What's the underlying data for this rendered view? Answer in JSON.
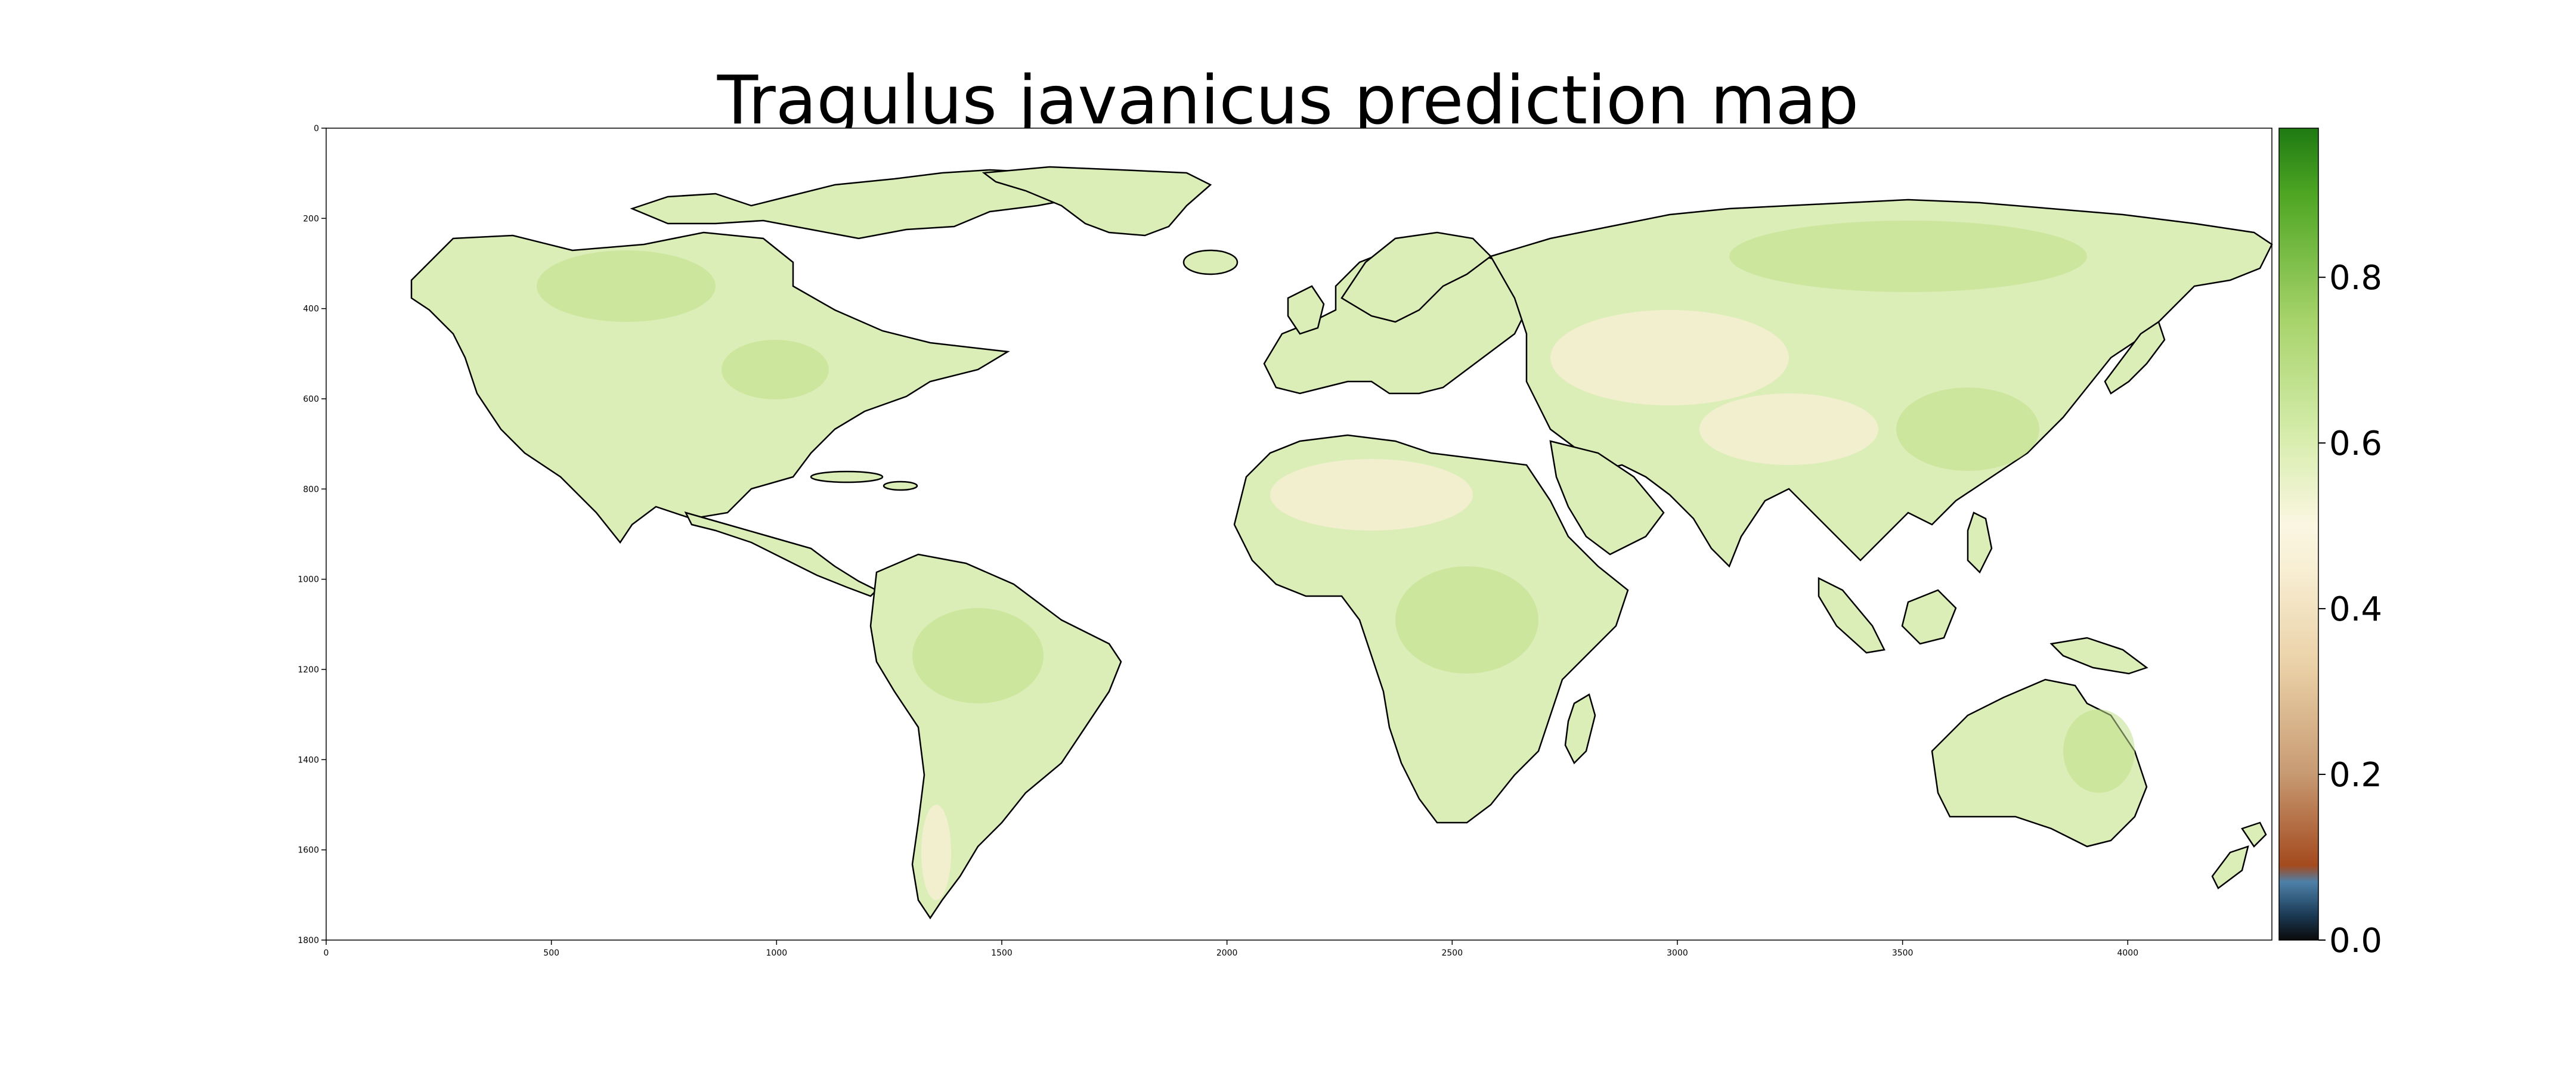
{
  "chart_data": {
    "type": "heatmap",
    "title": "Tragulus javanicus prediction map",
    "xlabel": "",
    "ylabel": "",
    "xlim": [
      0,
      4320
    ],
    "ylim": [
      1800,
      0
    ],
    "x_ticks": [
      "0",
      "500",
      "1000",
      "1500",
      "2000",
      "2500",
      "3000",
      "3500",
      "4000"
    ],
    "y_ticks": [
      "0",
      "200",
      "400",
      "600",
      "800",
      "1000",
      "1200",
      "1400",
      "1600",
      "1800"
    ],
    "x_tick_values": [
      0,
      500,
      1000,
      1500,
      2000,
      2500,
      3000,
      3500,
      4000
    ],
    "y_tick_values": [
      0,
      200,
      400,
      600,
      800,
      1000,
      1200,
      1400,
      1600,
      1800
    ],
    "colorbar": {
      "range": [
        0.0,
        0.98
      ],
      "ticks": [
        "0.0",
        "0.2",
        "0.4",
        "0.6",
        "0.8"
      ],
      "tick_values": [
        0.0,
        0.2,
        0.4,
        0.6,
        0.8
      ],
      "colormap_stops": [
        {
          "value": 0.0,
          "color": "#0a0a0a"
        },
        {
          "value": 0.03,
          "color": "#1b3a55"
        },
        {
          "value": 0.07,
          "color": "#4d80a8"
        },
        {
          "value": 0.09,
          "color": "#a44a1e"
        },
        {
          "value": 0.2,
          "color": "#c79a72"
        },
        {
          "value": 0.33,
          "color": "#ead0a6"
        },
        {
          "value": 0.45,
          "color": "#f8efd4"
        },
        {
          "value": 0.5,
          "color": "#fbf6e2"
        },
        {
          "value": 0.6,
          "color": "#d9eeb0"
        },
        {
          "value": 0.75,
          "color": "#a6d36a"
        },
        {
          "value": 0.9,
          "color": "#4ea623"
        },
        {
          "value": 0.98,
          "color": "#1e7a12"
        }
      ]
    },
    "land_typical_value": 0.55,
    "background_color": "#ffffff"
  }
}
